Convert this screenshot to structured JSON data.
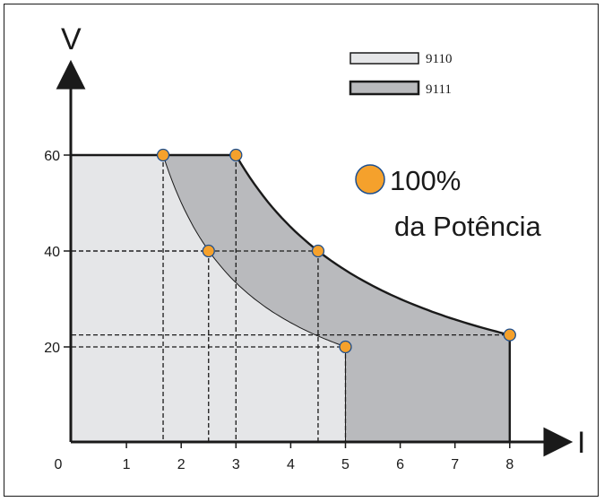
{
  "chart_data": {
    "type": "area",
    "xlabel": "I",
    "ylabel": "V",
    "xlim": [
      0,
      8.8
    ],
    "ylim": [
      4,
      64
    ],
    "x_ticks": [
      "0",
      "1",
      "2",
      "3",
      "4",
      "5",
      "6",
      "7",
      "8"
    ],
    "y_ticks": [
      "20",
      "40",
      "60"
    ],
    "legend": {
      "placement": "top-right",
      "entries": [
        {
          "label": "9110",
          "color": "#e5e6e8"
        },
        {
          "label": "9111",
          "color": "#b9babd"
        }
      ]
    },
    "series": [
      {
        "name": "9110",
        "color": "#e5e6e8",
        "points": [
          [
            1.67,
            60
          ],
          [
            2.5,
            40
          ],
          [
            5,
            20
          ]
        ],
        "max_current": 5,
        "max_voltage": 60
      },
      {
        "name": "9111",
        "color": "#b9babd",
        "points": [
          [
            3,
            60
          ],
          [
            4.5,
            40
          ],
          [
            8,
            22.5
          ]
        ],
        "max_current": 8,
        "max_voltage": 60
      }
    ],
    "marker_color": "#f5a12c",
    "annotation": {
      "line1": "100%",
      "line2": "da Potência"
    }
  }
}
